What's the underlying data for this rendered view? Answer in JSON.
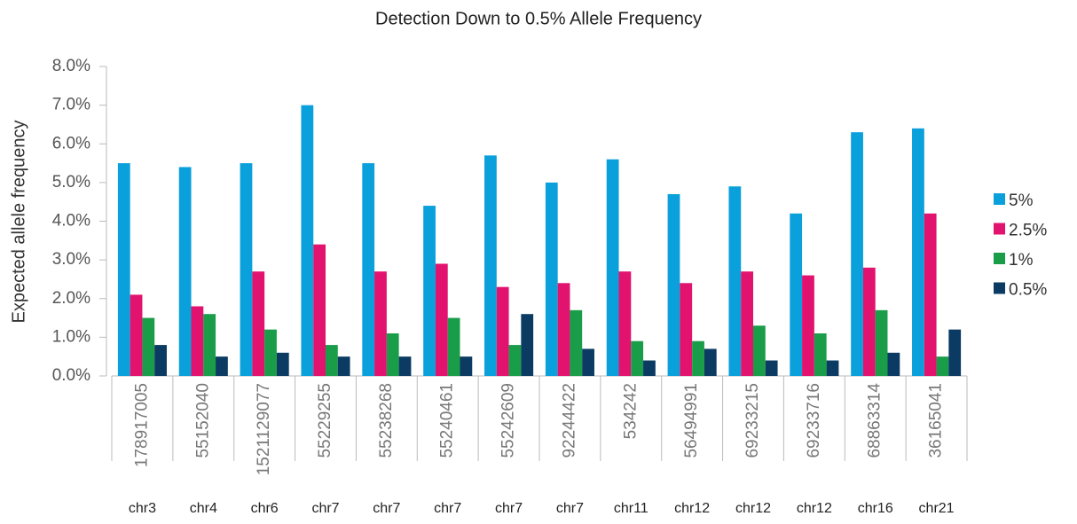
{
  "chart_data": {
    "type": "bar",
    "title": "Detection Down to 0.5% Allele Frequency",
    "y_label": "Expected allele frequency",
    "categories": [
      "178917005",
      "55152040",
      "1521129077",
      "55229255",
      "55238268",
      "55240461",
      "55242609",
      "92244422",
      "534242",
      "56494991",
      "69233215",
      "69233716",
      "68863314",
      "36165041"
    ],
    "chromosomes": [
      "chr3",
      "chr4",
      "chr6",
      "chr7",
      "chr7",
      "chr7",
      "chr7",
      "chr7",
      "chr11",
      "chr12",
      "chr12",
      "chr12",
      "chr16",
      "chr21"
    ],
    "series": [
      {
        "name": "5%",
        "color": "#0aa0dc",
        "values": [
          5.5,
          5.4,
          5.5,
          7.0,
          5.5,
          4.4,
          5.7,
          5.0,
          5.6,
          4.7,
          4.9,
          4.2,
          6.3,
          6.4
        ]
      },
      {
        "name": "2.5%",
        "color": "#e2126f",
        "values": [
          2.1,
          1.8,
          2.7,
          3.4,
          2.7,
          2.9,
          2.3,
          2.4,
          2.7,
          2.4,
          2.7,
          2.6,
          2.8,
          4.2
        ]
      },
      {
        "name": "1%",
        "color": "#1a9d48",
        "values": [
          1.5,
          1.6,
          1.2,
          0.8,
          1.1,
          1.5,
          0.8,
          1.7,
          0.9,
          0.9,
          1.3,
          1.1,
          1.7,
          0.5
        ]
      },
      {
        "name": "0.5%",
        "color": "#0b3a62",
        "values": [
          0.8,
          0.5,
          0.6,
          0.5,
          0.5,
          0.5,
          1.6,
          0.7,
          0.4,
          0.7,
          0.4,
          0.4,
          0.6,
          1.2
        ]
      }
    ],
    "ylim": [
      0,
      8
    ],
    "yticks": [
      {
        "value": 0,
        "label": "0.0%"
      },
      {
        "value": 1,
        "label": "1.0%"
      },
      {
        "value": 2,
        "label": "2.0%"
      },
      {
        "value": 3,
        "label": "3.0%"
      },
      {
        "value": 4,
        "label": "4.0%"
      },
      {
        "value": 5,
        "label": "5.0%"
      },
      {
        "value": 6,
        "label": "6.0%"
      },
      {
        "value": 7,
        "label": "7.0%"
      },
      {
        "value": 8,
        "label": "8.0%"
      }
    ],
    "legend": "right"
  }
}
